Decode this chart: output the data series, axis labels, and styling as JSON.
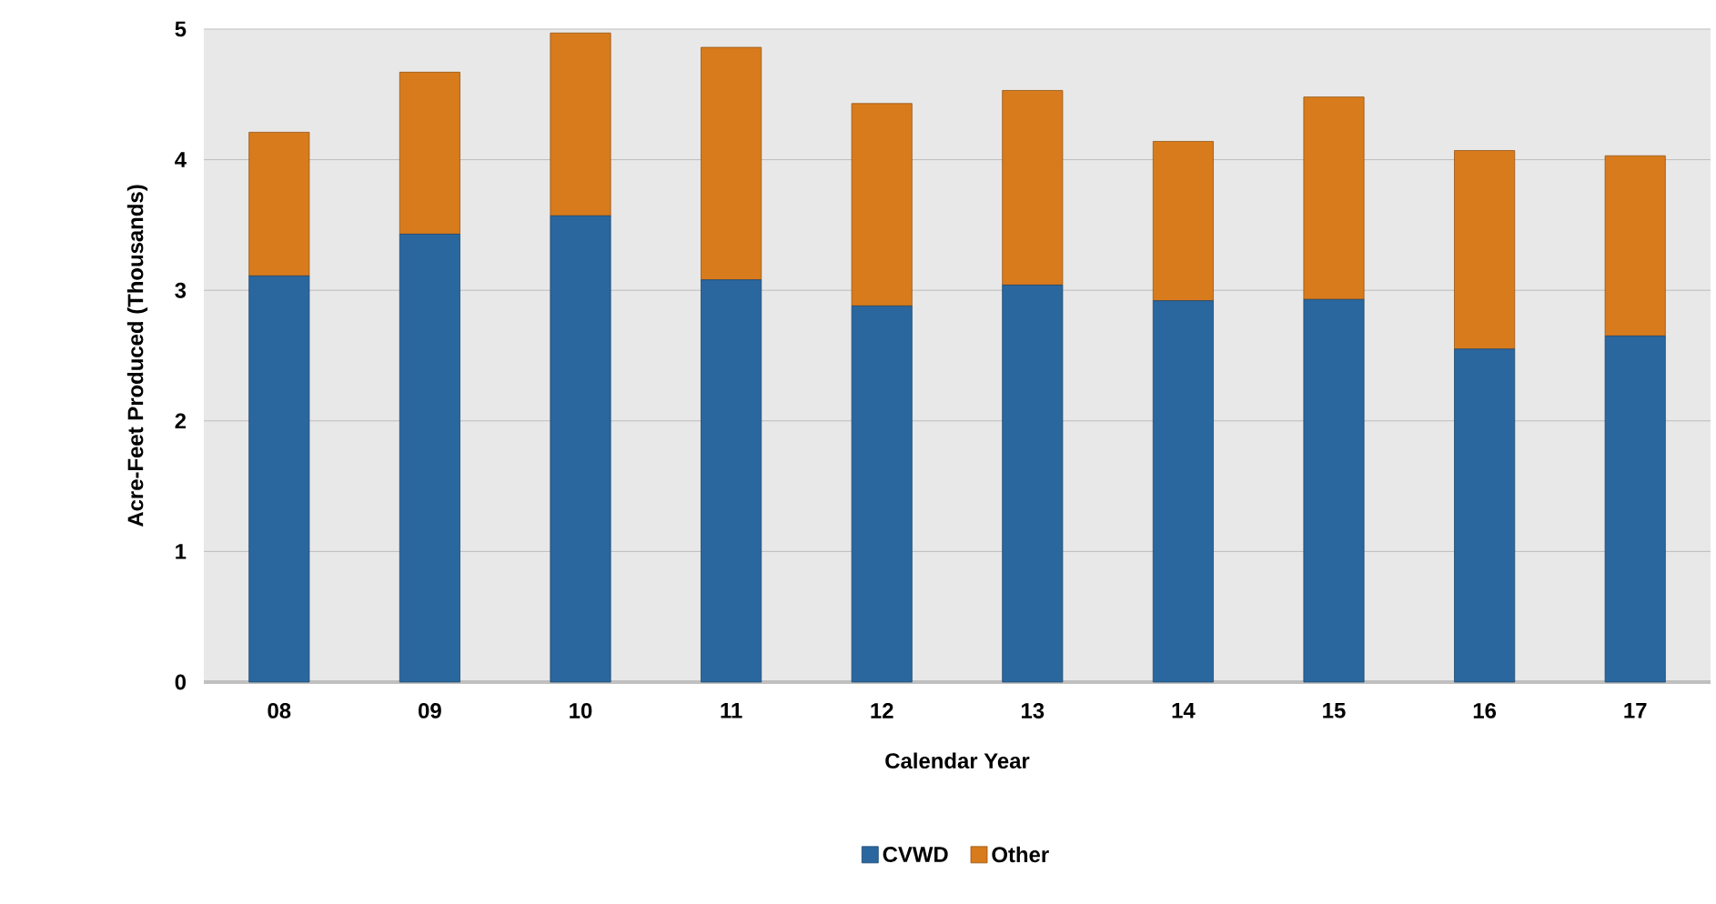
{
  "chart_data": {
    "type": "bar",
    "stacked": true,
    "xlabel": "Calendar Year",
    "ylabel": "Acre-Feet Produced  (Thousands)",
    "categories": [
      "08",
      "09",
      "10",
      "11",
      "12",
      "13",
      "14",
      "15",
      "16",
      "17"
    ],
    "series": [
      {
        "name": "CVWD",
        "color": "#2a679f",
        "values": [
          3.11,
          3.43,
          3.57,
          3.08,
          2.88,
          3.04,
          2.92,
          2.93,
          2.55,
          2.65
        ]
      },
      {
        "name": "Other",
        "color": "#d87b1c",
        "values": [
          1.1,
          1.24,
          1.4,
          1.78,
          1.55,
          1.49,
          1.22,
          1.55,
          1.52,
          1.38
        ]
      }
    ],
    "ylim": [
      0,
      5
    ],
    "yticks": [
      0,
      1,
      2,
      3,
      4,
      5
    ],
    "grid": "y",
    "legend": "bottom"
  }
}
